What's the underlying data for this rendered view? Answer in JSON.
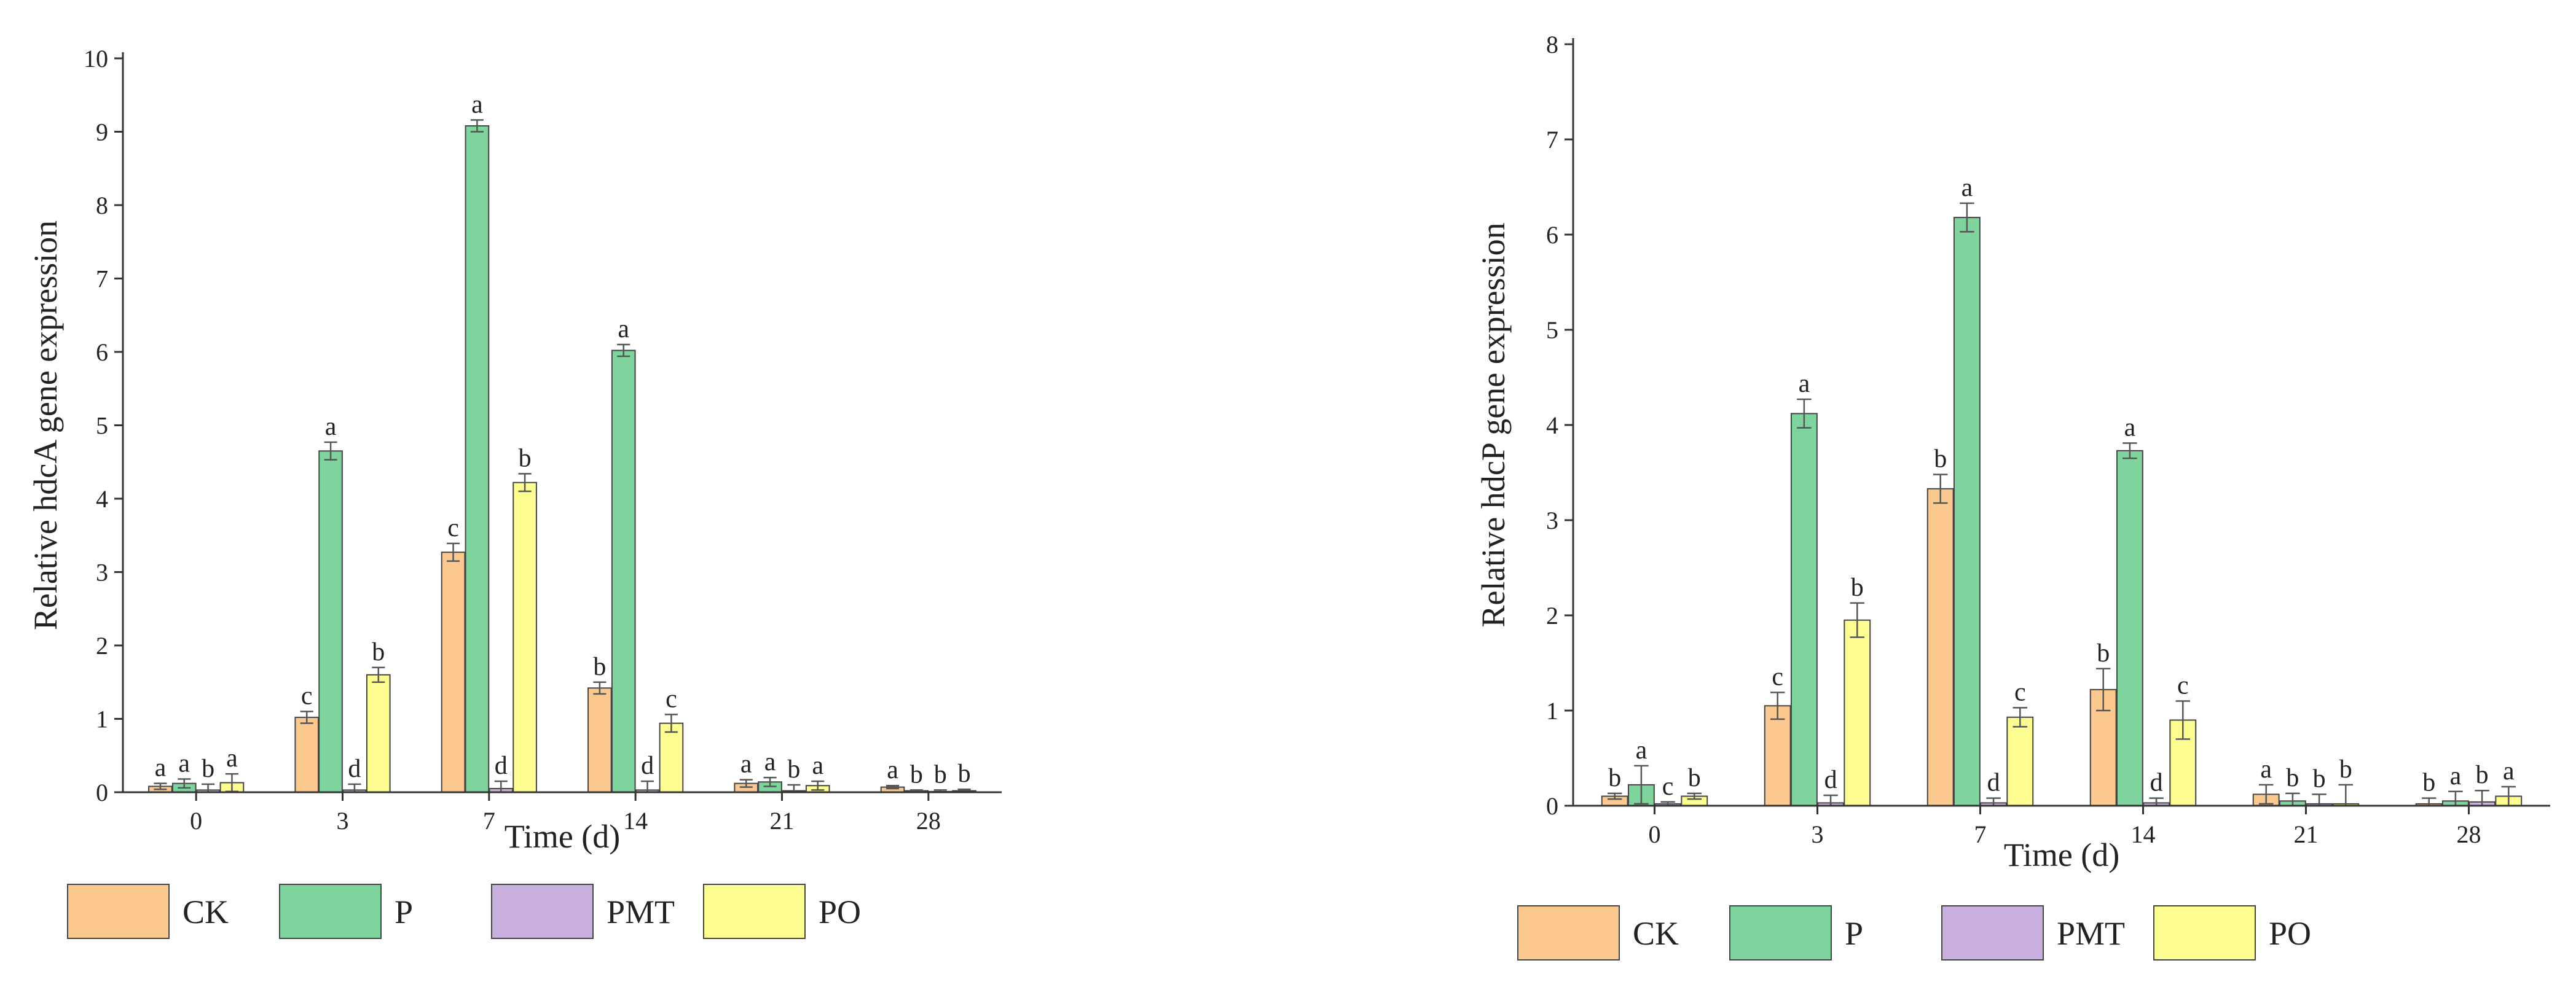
{
  "chart_data": [
    {
      "type": "bar",
      "title": "",
      "xlabel": "Time (d)",
      "ylabel": "Relative hdcA gene expression",
      "ylim": [
        0,
        10
      ],
      "yticks": [
        "0",
        "1",
        "2",
        "3",
        "4",
        "5",
        "6",
        "7",
        "8",
        "9",
        "10"
      ],
      "categories": [
        "0",
        "3",
        "7",
        "14",
        "21",
        "28"
      ],
      "legend_position": "bottom",
      "grid": false,
      "series": [
        {
          "name": "CK",
          "color": "#fbc990",
          "values": [
            0.08,
            1.02,
            3.27,
            1.42,
            0.12,
            0.07
          ],
          "errors": [
            0.04,
            0.08,
            0.12,
            0.08,
            0.05,
            0.02
          ],
          "labels": [
            "a",
            "c",
            "c",
            "b",
            "a",
            "a"
          ]
        },
        {
          "name": "P",
          "color": "#7fd39c",
          "values": [
            0.12,
            4.65,
            9.08,
            6.02,
            0.14,
            0.02
          ],
          "errors": [
            0.06,
            0.12,
            0.08,
            0.08,
            0.06,
            0.01
          ],
          "labels": [
            "a",
            "a",
            "a",
            "a",
            "a",
            "b"
          ]
        },
        {
          "name": "PMT",
          "color": "#c9afe0",
          "values": [
            0.03,
            0.03,
            0.05,
            0.03,
            0.02,
            0.01
          ],
          "errors": [
            0.08,
            0.08,
            0.1,
            0.12,
            0.08,
            0.02
          ],
          "labels": [
            "b",
            "d",
            "d",
            "d",
            "b",
            "b"
          ]
        },
        {
          "name": "PO",
          "color": "#fdfd92",
          "values": [
            0.13,
            1.6,
            4.22,
            0.94,
            0.09,
            0.02
          ],
          "errors": [
            0.12,
            0.1,
            0.12,
            0.12,
            0.06,
            0.02
          ],
          "labels": [
            "a",
            "b",
            "b",
            "c",
            "a",
            "b"
          ]
        }
      ]
    },
    {
      "type": "bar",
      "title": "",
      "xlabel": "Time (d)",
      "ylabel": "Relative hdcP gene expression",
      "ylim": [
        0,
        8
      ],
      "yticks": [
        "0",
        "1",
        "2",
        "3",
        "4",
        "5",
        "6",
        "7",
        "8"
      ],
      "categories": [
        "0",
        "3",
        "7",
        "14",
        "21",
        "28"
      ],
      "legend_position": "bottom",
      "grid": false,
      "series": [
        {
          "name": "CK",
          "color": "#fbc990",
          "values": [
            0.1,
            1.05,
            3.33,
            1.22,
            0.12,
            0.02
          ],
          "errors": [
            0.03,
            0.14,
            0.15,
            0.22,
            0.1,
            0.06
          ],
          "labels": [
            "b",
            "c",
            "b",
            "b",
            "a",
            "b"
          ]
        },
        {
          "name": "P",
          "color": "#7fd39c",
          "values": [
            0.22,
            4.12,
            6.18,
            3.73,
            0.05,
            0.05
          ],
          "errors": [
            0.2,
            0.15,
            0.15,
            0.08,
            0.08,
            0.1
          ],
          "labels": [
            "a",
            "a",
            "a",
            "a",
            "b",
            "a"
          ]
        },
        {
          "name": "PMT",
          "color": "#c9afe0",
          "values": [
            0.02,
            0.03,
            0.03,
            0.03,
            0.02,
            0.04
          ],
          "errors": [
            0.02,
            0.08,
            0.05,
            0.05,
            0.1,
            0.12
          ],
          "labels": [
            "c",
            "d",
            "d",
            "d",
            "b",
            "b"
          ]
        },
        {
          "name": "PO",
          "color": "#fdfd92",
          "values": [
            0.1,
            1.95,
            0.93,
            0.9,
            0.02,
            0.1
          ],
          "errors": [
            0.03,
            0.18,
            0.1,
            0.2,
            0.2,
            0.1
          ],
          "labels": [
            "b",
            "b",
            "c",
            "c",
            "b",
            "a"
          ]
        }
      ]
    }
  ]
}
